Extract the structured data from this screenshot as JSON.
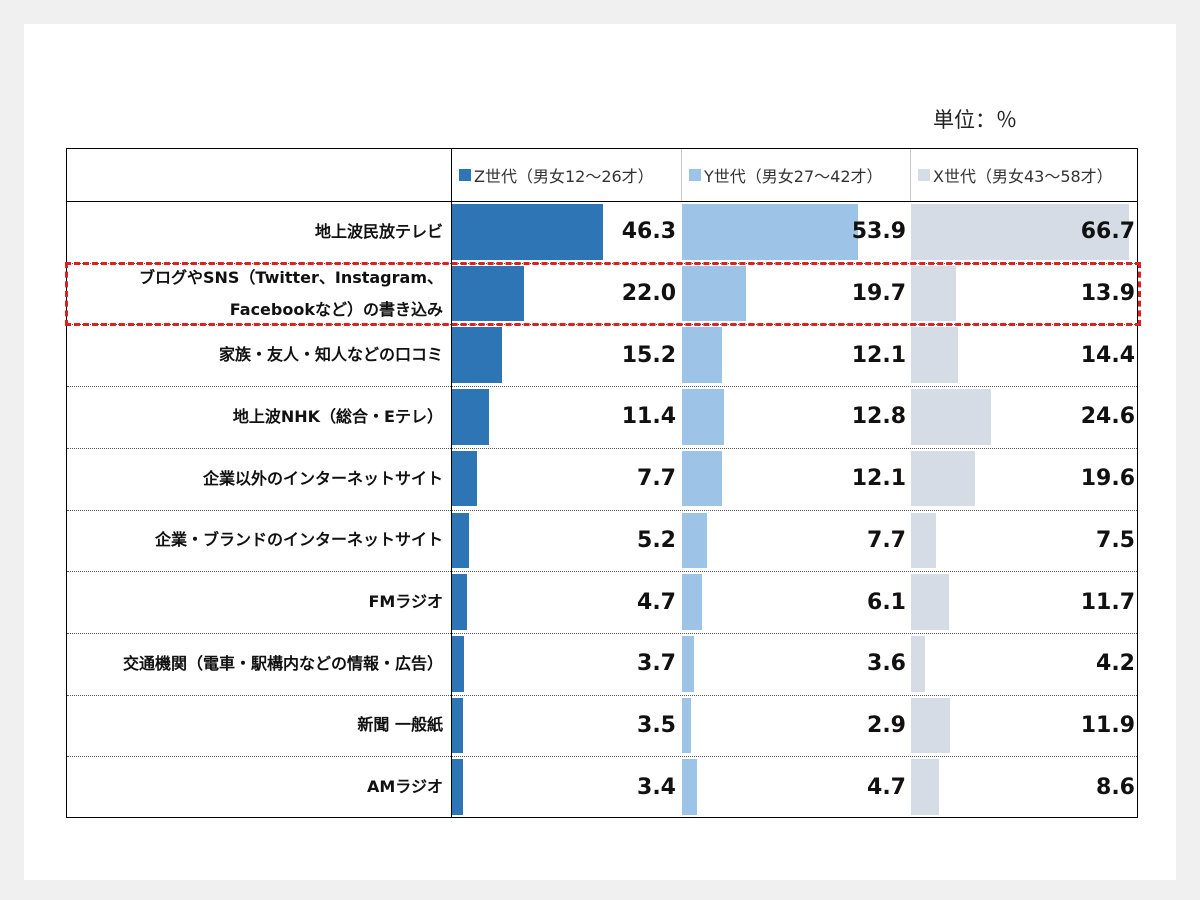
{
  "unit_label": "単位：％",
  "colors": {
    "z": "#2e75b6",
    "y": "#9dc3e6",
    "x": "#d6dce5",
    "highlight": "#e0201c"
  },
  "chart_data": {
    "type": "bar",
    "orientation": "horizontal",
    "max_value": 70,
    "highlighted_category_index": 1,
    "categories": [
      "地上波民放テレビ",
      "ブログやSNS（Twitter、Instagram、Facebookなど）の書き込み",
      "家族・友人・知人などの口コミ",
      "地上波NHK（総合・Eテレ）",
      "企業以外のインターネットサイト",
      "企業・ブランドのインターネットサイト",
      "FMラジオ",
      "交通機関（電車・駅構内などの情報・広告）",
      "新聞 一般紙",
      "AMラジオ"
    ],
    "category_lines": [
      [
        "地上波民放テレビ"
      ],
      [
        "ブログやSNS（Twitter、Instagram、",
        "Facebookなど）の書き込み"
      ],
      [
        "家族・友人・知人などの口コミ"
      ],
      [
        "地上波NHK（総合・Eテレ）"
      ],
      [
        "企業以外のインターネットサイト"
      ],
      [
        "企業・ブランドのインターネットサイト"
      ],
      [
        "FMラジオ"
      ],
      [
        "交通機関（電車・駅構内などの情報・広告）"
      ],
      [
        "新聞 一般紙"
      ],
      [
        "AMラジオ"
      ]
    ],
    "series": [
      {
        "key": "z",
        "name": "Z世代（男女12～26才）",
        "values": [
          46.3,
          22.0,
          15.2,
          11.4,
          7.7,
          5.2,
          4.7,
          3.7,
          3.5,
          3.4
        ]
      },
      {
        "key": "y",
        "name": "Y世代（男女27～42才）",
        "values": [
          53.9,
          19.7,
          12.1,
          12.8,
          12.1,
          7.7,
          6.1,
          3.6,
          2.9,
          4.7
        ]
      },
      {
        "key": "x",
        "name": "X世代（男女43～58才）",
        "values": [
          66.7,
          13.9,
          14.4,
          24.6,
          19.6,
          7.5,
          11.7,
          4.2,
          11.9,
          8.6
        ]
      }
    ]
  }
}
